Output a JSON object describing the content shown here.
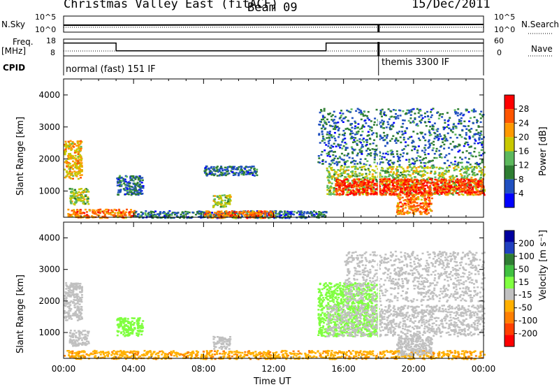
{
  "header": {
    "station": "Christmas Valley East (fitACF)",
    "beam": "Beam 09",
    "date": "15/Dec/2011"
  },
  "top_panels": {
    "nsky_label": "N.Sky",
    "nsearch_label": "N.Search",
    "freq_label_1": "Freq.",
    "freq_label_2": "[MHz]",
    "nave_label": "Nave",
    "cpid_label": "CPID",
    "nsky_ticks": [
      "10^5",
      "10^0"
    ],
    "nsearch_ticks": [
      "10^5",
      "10^0"
    ],
    "freq_ticks": [
      "18",
      "8"
    ],
    "nave_ticks": [
      "60",
      "0"
    ],
    "cpid_segments": [
      {
        "label": "normal (fast) 151 IF",
        "start_hour": 0,
        "end_hour": 18
      },
      {
        "label": "themis 3300 IF",
        "start_hour": 18,
        "end_hour": 24
      }
    ],
    "freq_profile": [
      {
        "from": 0,
        "to": 3,
        "value": 17
      },
      {
        "from": 3,
        "to": 15,
        "value": 10
      },
      {
        "from": 15,
        "to": 24,
        "value": 17
      }
    ]
  },
  "colors": {
    "power_scale": [
      "#0000ff",
      "#2050c0",
      "#2e7d32",
      "#5cb85c",
      "#c8c800",
      "#ff9900",
      "#ff5500",
      "#ff0000"
    ],
    "velocity_scale": [
      "#ff0000",
      "#ff4000",
      "#ff7f00",
      "#ffb000",
      "#c0c0c0",
      "#80ff40",
      "#40c040",
      "#2e7d32",
      "#2040c0",
      "#0000a0"
    ]
  },
  "chart_data": [
    {
      "type": "heatmap",
      "panel": "power",
      "ylabel": "Slant Range [km]",
      "colorbar_label": "Power [dB]",
      "colorbar_ticks": [
        "28",
        "24",
        "20",
        "16",
        "12",
        "8",
        "4"
      ],
      "ylim": [
        180,
        4500
      ],
      "yticks": [
        1000,
        2000,
        3000,
        4000
      ],
      "xlim": [
        "00:00",
        "24:00"
      ],
      "regions": [
        {
          "t0": 0.0,
          "t1": 1.0,
          "r0": 1400,
          "r1": 2600,
          "level": 20
        },
        {
          "t0": 0.3,
          "t1": 1.4,
          "r0": 600,
          "r1": 1100,
          "level": 16
        },
        {
          "t0": 0.2,
          "t1": 4.0,
          "r0": 180,
          "r1": 450,
          "level": 24
        },
        {
          "t0": 3.0,
          "t1": 4.5,
          "r0": 900,
          "r1": 1500,
          "level": 8
        },
        {
          "t0": 4.0,
          "t1": 15.0,
          "r0": 180,
          "r1": 400,
          "level": 8
        },
        {
          "t0": 8.0,
          "t1": 12.0,
          "r0": 180,
          "r1": 400,
          "level": 24
        },
        {
          "t0": 8.0,
          "t1": 11.0,
          "r0": 1500,
          "r1": 1800,
          "level": 8
        },
        {
          "t0": 8.5,
          "t1": 9.5,
          "r0": 500,
          "r1": 900,
          "level": 16
        },
        {
          "t0": 14.5,
          "t1": 24.0,
          "r0": 1800,
          "r1": 3600,
          "level": 8
        },
        {
          "t0": 15.0,
          "t1": 24.0,
          "r0": 900,
          "r1": 1800,
          "level": 16
        },
        {
          "t0": 15.5,
          "t1": 24.0,
          "r0": 900,
          "r1": 1400,
          "level": 28
        },
        {
          "t0": 19.0,
          "t1": 21.0,
          "r0": 300,
          "r1": 900,
          "level": 24
        }
      ]
    },
    {
      "type": "heatmap",
      "panel": "velocity",
      "ylabel": "Slant Range [km]",
      "colorbar_label": "Velocity [m s⁻¹]",
      "colorbar_ticks": [
        "200",
        "100",
        "50",
        "15",
        "-15",
        "-50",
        "-100",
        "-200"
      ],
      "ylim": [
        180,
        4500
      ],
      "yticks": [
        1000,
        2000,
        3000,
        4000
      ],
      "xlabel": "Time UT",
      "xticks": [
        "00:00",
        "04:00",
        "08:00",
        "12:00",
        "16:00",
        "20:00",
        "00:00"
      ],
      "xlim": [
        "00:00",
        "24:00"
      ],
      "regions": [
        {
          "t0": 0.0,
          "t1": 1.0,
          "r0": 1400,
          "r1": 2600,
          "level": 0
        },
        {
          "t0": 0.3,
          "t1": 1.4,
          "r0": 600,
          "r1": 1100,
          "level": 0
        },
        {
          "t0": 3.0,
          "t1": 4.5,
          "r0": 900,
          "r1": 1500,
          "level": 30
        },
        {
          "t0": 0.0,
          "t1": 24.0,
          "r0": 180,
          "r1": 450,
          "level": -40
        },
        {
          "t0": 8.5,
          "t1": 9.5,
          "r0": 500,
          "r1": 900,
          "level": 0
        },
        {
          "t0": 14.5,
          "t1": 18.0,
          "r0": 900,
          "r1": 2600,
          "level": 30
        },
        {
          "t0": 15.0,
          "t1": 24.0,
          "r0": 900,
          "r1": 1900,
          "level": 0
        },
        {
          "t0": 16.0,
          "t1": 24.0,
          "r0": 2000,
          "r1": 3600,
          "level": 0
        },
        {
          "t0": 19.0,
          "t1": 21.0,
          "r0": 300,
          "r1": 900,
          "level": 0
        }
      ]
    }
  ],
  "axis_labels": {
    "time_label": "Time UT",
    "range_label_power": "Slant Range [km]",
    "range_label_velocity": "Slant Range [km]"
  }
}
